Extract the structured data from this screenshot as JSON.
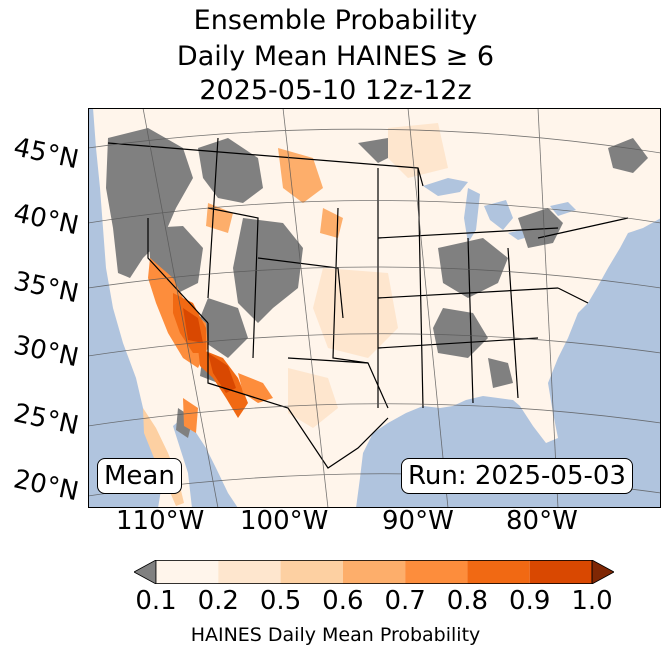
{
  "title": {
    "line1": "Ensemble Probability",
    "line2": "Daily Mean HAINES ≥ 6",
    "line3": "2025-05-10 12z-12z"
  },
  "map": {
    "lat_labels": [
      "45°N",
      "40°N",
      "35°N",
      "30°N",
      "25°N",
      "20°N"
    ],
    "lon_labels": [
      "110°W",
      "100°W",
      "90°W",
      "80°W"
    ],
    "mean_label": "Mean",
    "run_label": "Run: 2025-05-03",
    "colors": {
      "ocean": "#b0c4de",
      "missing": "#808080",
      "land_low": "#fff5eb",
      "border": "#000000"
    }
  },
  "colorbar": {
    "label": "HAINES Daily Mean Probability",
    "ticks": [
      "0.1",
      "0.2",
      "0.5",
      "0.6",
      "0.7",
      "0.8",
      "0.9",
      "1.0"
    ],
    "under_color": "#808080",
    "over_color": "#7f2704",
    "bins": [
      "#fff5eb",
      "#fee6ce",
      "#fdd0a2",
      "#fdae6b",
      "#fd8d3c",
      "#f16913",
      "#d94801"
    ]
  }
}
